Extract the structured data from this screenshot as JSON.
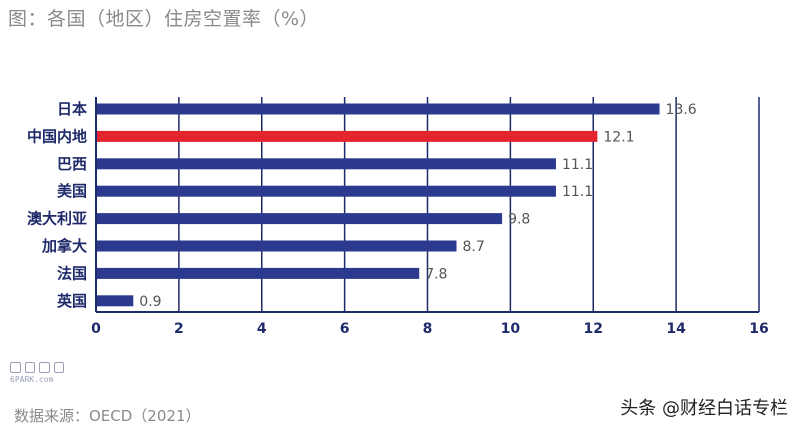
{
  "title": "图：各国（地区）住房空置率（%）",
  "source": "数据来源：OECD（2021）",
  "watermark": "头条 @财经白话专栏",
  "logo": {
    "site": "6PARK.com"
  },
  "colors": {
    "bar": "#2b3a8f",
    "highlight": "#e3262d",
    "axis": "#1f2a6b",
    "label": "#1f2a6b",
    "value": "#555555"
  },
  "chart_data": {
    "type": "bar",
    "orientation": "horizontal",
    "categories": [
      "日本",
      "中国内地",
      "巴西",
      "美国",
      "澳大利亚",
      "加拿大",
      "法国",
      "英国"
    ],
    "values": [
      13.6,
      12.1,
      11.1,
      11.1,
      9.8,
      8.7,
      7.8,
      0.9
    ],
    "value_labels": [
      "13.6",
      "12.1",
      "11.1",
      "11.1",
      "9.8",
      "8.7",
      "7.8",
      "0.9"
    ],
    "highlight_index": 1,
    "xlim": [
      0,
      16
    ],
    "xticks": [
      0,
      2,
      4,
      6,
      8,
      10,
      12,
      14,
      16
    ],
    "grid": "vertical"
  }
}
